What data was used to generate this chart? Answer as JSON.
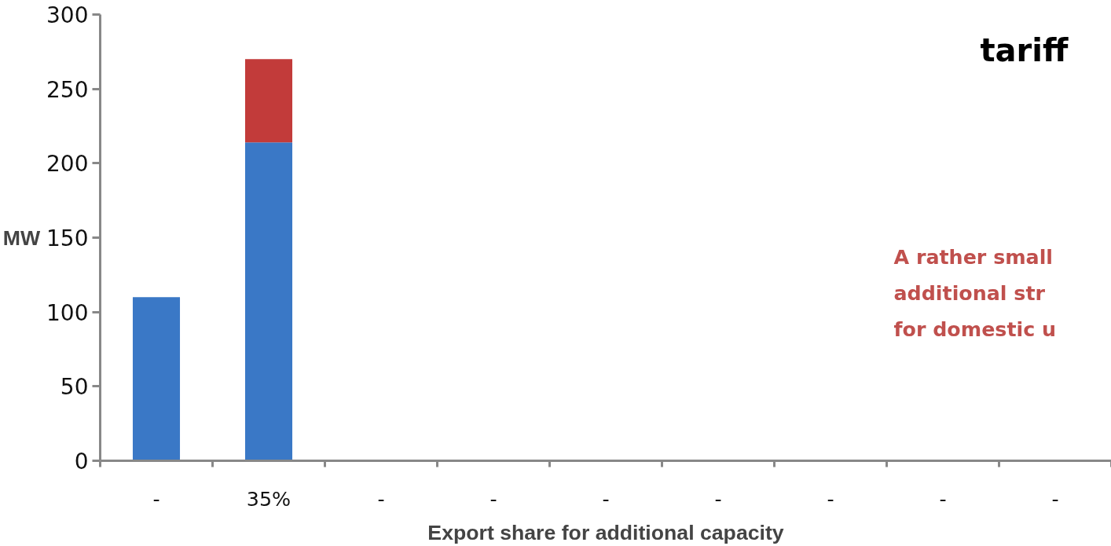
{
  "chart_data": {
    "type": "bar",
    "stacked": true,
    "ylabel": "MW",
    "xlabel": "Export share for additional capacity",
    "categories": [
      "-",
      "35%",
      "-",
      "-",
      "-",
      "-",
      "-",
      "-",
      "-"
    ],
    "series": [
      {
        "color": "#3a78c6",
        "values": [
          110,
          214,
          null,
          null,
          null,
          null,
          null,
          null,
          null
        ]
      },
      {
        "color": "#c23b3a",
        "values": [
          null,
          56,
          null,
          null,
          null,
          null,
          null,
          null,
          null
        ]
      }
    ],
    "ylim": [
      0,
      300
    ],
    "yticks": [
      0,
      50,
      100,
      150,
      200,
      250,
      300
    ],
    "grid": false,
    "annotations": [
      "tariff",
      "A rather small",
      "additional str",
      "for domestic u"
    ]
  }
}
